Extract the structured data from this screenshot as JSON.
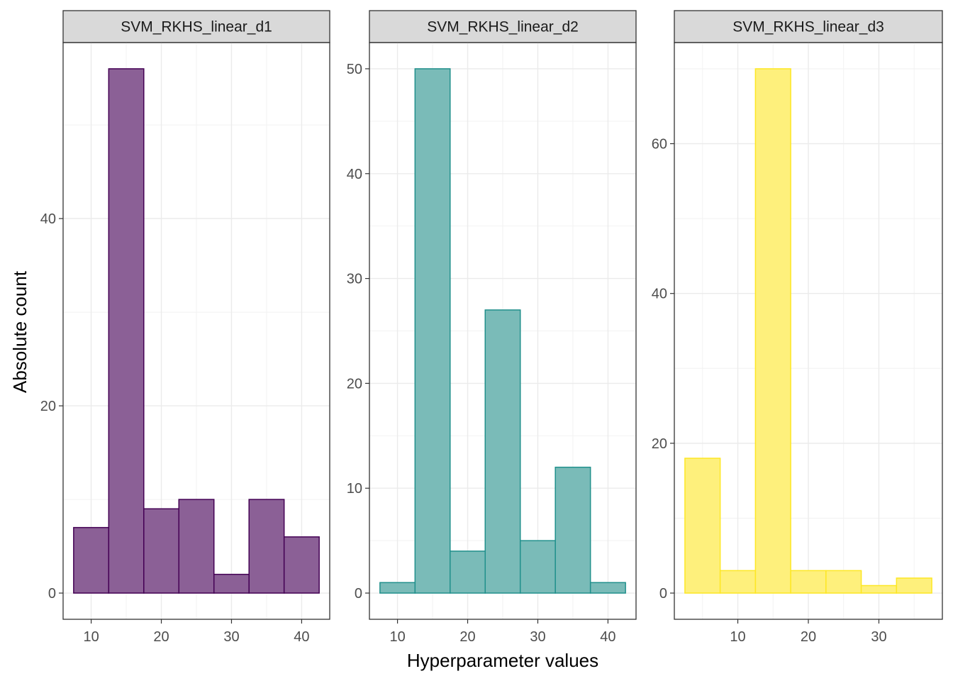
{
  "chart_data": {
    "type": "bar",
    "xlabel": "Hyperparameter values",
    "ylabel": "Absolute count",
    "panels": [
      {
        "title": "SVM_RKHS_linear_d1",
        "color": "#440154",
        "fill": "#8B6096",
        "bin_width": 5,
        "bins": [
          {
            "x": 10,
            "count": 7
          },
          {
            "x": 15,
            "count": 56
          },
          {
            "x": 20,
            "count": 9
          },
          {
            "x": 25,
            "count": 10
          },
          {
            "x": 30,
            "count": 2
          },
          {
            "x": 35,
            "count": 10
          },
          {
            "x": 40,
            "count": 6
          }
        ],
        "xlim": [
          6,
          44
        ],
        "ylim": [
          -2.8,
          58.8
        ],
        "xticks": [
          10,
          20,
          30,
          40
        ],
        "yticks": [
          0,
          20,
          40
        ]
      },
      {
        "title": "SVM_RKHS_linear_d2",
        "color": "#21908C",
        "fill": "#7ABBB8",
        "bin_width": 5,
        "bins": [
          {
            "x": 10,
            "count": 1
          },
          {
            "x": 15,
            "count": 50
          },
          {
            "x": 20,
            "count": 4
          },
          {
            "x": 25,
            "count": 27
          },
          {
            "x": 30,
            "count": 5
          },
          {
            "x": 35,
            "count": 12
          },
          {
            "x": 40,
            "count": 1
          }
        ],
        "xlim": [
          6,
          44
        ],
        "ylim": [
          -2.5,
          52.5
        ],
        "xticks": [
          10,
          20,
          30,
          40
        ],
        "yticks": [
          0,
          10,
          20,
          30,
          40,
          50
        ]
      },
      {
        "title": "SVM_RKHS_linear_d3",
        "color": "#FDE725",
        "fill": "#FEF07C",
        "bin_width": 5,
        "bins": [
          {
            "x": 5,
            "count": 18
          },
          {
            "x": 10,
            "count": 3
          },
          {
            "x": 15,
            "count": 70
          },
          {
            "x": 20,
            "count": 3
          },
          {
            "x": 25,
            "count": 3
          },
          {
            "x": 30,
            "count": 1
          },
          {
            "x": 35,
            "count": 2
          }
        ],
        "xlim": [
          1,
          39
        ],
        "ylim": [
          -3.5,
          73.5
        ],
        "xticks": [
          10,
          20,
          30
        ],
        "yticks": [
          0,
          20,
          40,
          60
        ]
      }
    ]
  }
}
